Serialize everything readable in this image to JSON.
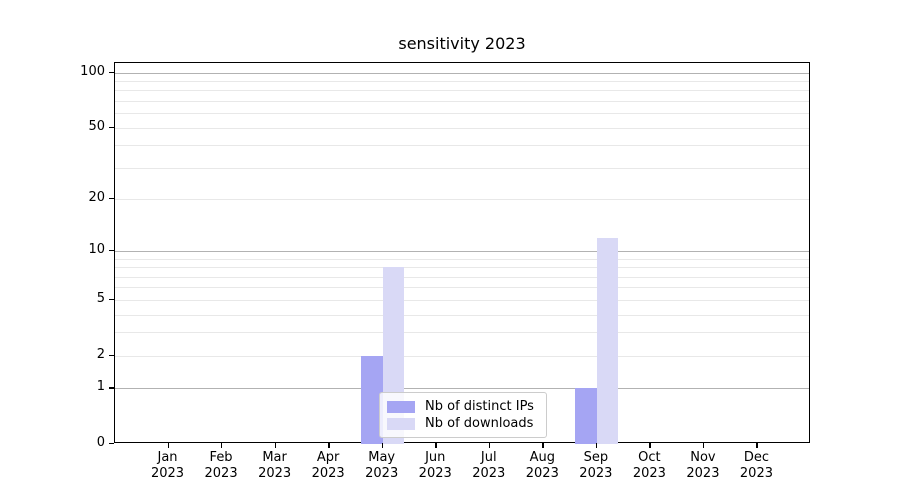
{
  "chart_data": {
    "type": "bar",
    "title": "sensitivity 2023",
    "categories": [
      {
        "month": "Jan",
        "year": "2023"
      },
      {
        "month": "Feb",
        "year": "2023"
      },
      {
        "month": "Mar",
        "year": "2023"
      },
      {
        "month": "Apr",
        "year": "2023"
      },
      {
        "month": "May",
        "year": "2023"
      },
      {
        "month": "Jun",
        "year": "2023"
      },
      {
        "month": "Jul",
        "year": "2023"
      },
      {
        "month": "Aug",
        "year": "2023"
      },
      {
        "month": "Sep",
        "year": "2023"
      },
      {
        "month": "Oct",
        "year": "2023"
      },
      {
        "month": "Nov",
        "year": "2023"
      },
      {
        "month": "Dec",
        "year": "2023"
      }
    ],
    "series": [
      {
        "name": "Nb of distinct IPs",
        "color": "#a5a5f3",
        "values": [
          0,
          0,
          0,
          0,
          2,
          0,
          0,
          0,
          1,
          0,
          0,
          0
        ]
      },
      {
        "name": "Nb of downloads",
        "color": "#d9d9f6",
        "values": [
          0,
          0,
          0,
          0,
          8,
          0,
          0,
          0,
          12,
          0,
          0,
          0
        ]
      }
    ],
    "y_scale": "log1p",
    "ylim": [
      0,
      113
    ],
    "y_ticks": [
      0,
      1,
      2,
      5,
      10,
      20,
      50,
      100
    ],
    "y_gridlines": {
      "major": [
        1,
        10,
        100
      ],
      "minor": [
        2,
        3,
        4,
        5,
        6,
        7,
        8,
        9,
        20,
        30,
        40,
        50,
        60,
        70,
        80,
        90
      ]
    },
    "grid": "both",
    "legend_position": "lower center",
    "colors": {
      "major_grid": "#b2b2b2",
      "minor_grid": "#e8e8e8",
      "spine": "#000000",
      "background": "#ffffff"
    }
  }
}
